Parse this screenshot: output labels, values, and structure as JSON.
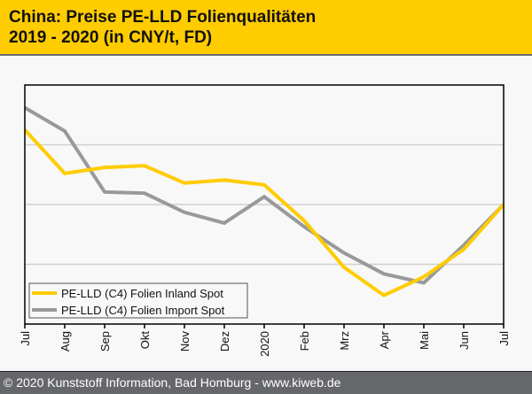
{
  "header": {
    "title_line1": "China: Preise PE-LLD Folienqualitäten",
    "title_line2": "2019 - 2020 (in CNY/t, FD)",
    "background_color": "#ffcc00"
  },
  "footer": {
    "text": "© 2020 Kunststoff Information, Bad Homburg - www.kiweb.de"
  },
  "chart_data": {
    "type": "line",
    "title": "China: Preise PE-LLD Folienqualitäten 2019 - 2020 (in CNY/t, FD)",
    "xlabel": "",
    "ylabel": "",
    "y_units_note": "no y-axis labels shown; values in relative gridline units (0 = bottom, 4 = top)",
    "ylim": [
      0,
      4
    ],
    "grid": true,
    "legend_position": "bottom-left",
    "categories": [
      "Jul",
      "Aug",
      "Sep",
      "Okt",
      "Nov",
      "Dez",
      "2020",
      "Feb",
      "Mrz",
      "Apr",
      "Mai",
      "Jun",
      "Jul"
    ],
    "series": [
      {
        "name": "PE-LLD (C4) Folien Inland Spot",
        "color": "#ffcc00",
        "values": [
          3.25,
          2.52,
          2.62,
          2.65,
          2.36,
          2.41,
          2.33,
          1.73,
          0.95,
          0.48,
          0.79,
          1.25,
          2.0
        ]
      },
      {
        "name": "PE-LLD (C4) Folien Import Spot",
        "color": "#999999",
        "values": [
          3.62,
          3.23,
          2.21,
          2.19,
          1.87,
          1.69,
          2.13,
          1.63,
          1.19,
          0.84,
          0.69,
          1.32,
          2.0
        ]
      }
    ]
  }
}
